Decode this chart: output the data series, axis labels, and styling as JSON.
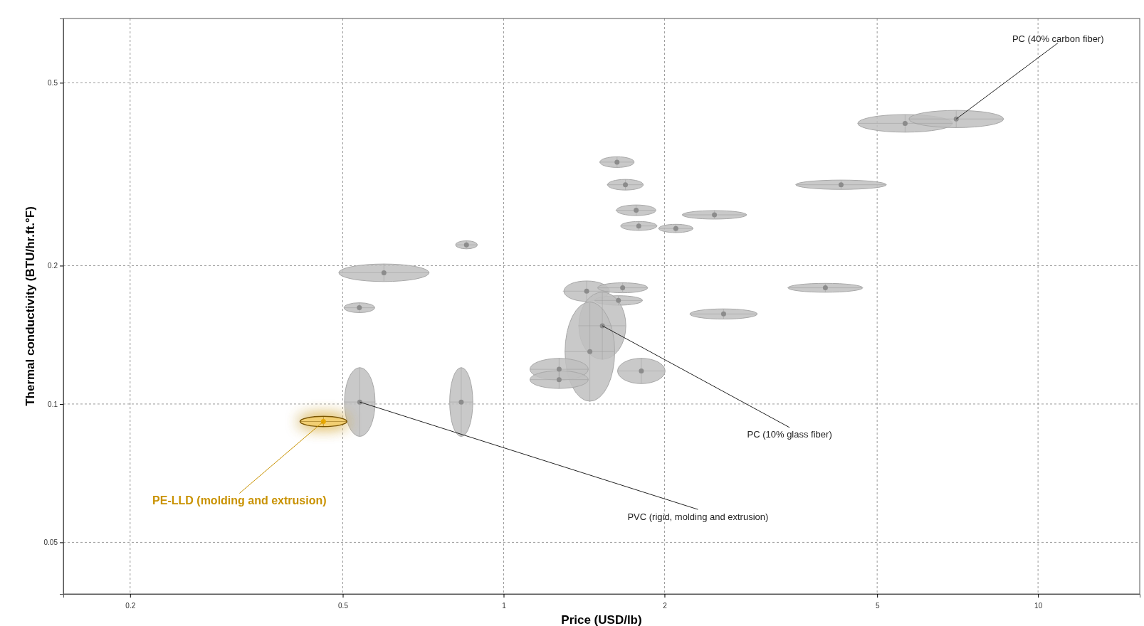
{
  "chart_data": {
    "type": "scatter",
    "xlabel": "Price (USD/lb)",
    "ylabel": "Thermal conductivity (BTU/hr.ft.°F)",
    "log": "xy",
    "grid": true,
    "xlim": [
      0.15,
      15.5
    ],
    "xticks": [
      0.2,
      0.5,
      1,
      2,
      5,
      10
    ],
    "ylim": [
      0.0386,
      0.69
    ],
    "yticks": [
      0.05,
      0.1,
      0.2,
      0.5
    ],
    "series": [
      {
        "color": "#8c8c8c",
        "x": [
          5.64,
          7.03,
          4.28,
          1.63,
          1.69,
          1.77,
          2.48,
          1.79,
          2.1,
          0.852,
          0.597,
          0.537,
          1.43,
          1.67,
          1.64,
          4.0,
          2.58,
          1.53,
          1.45,
          1.27,
          1.27,
          1.81,
          0.538,
          0.833
        ],
        "values": [
          0.408,
          0.417,
          0.3,
          0.336,
          0.3,
          0.264,
          0.258,
          0.244,
          0.241,
          0.222,
          0.193,
          0.162,
          0.176,
          0.179,
          0.168,
          0.179,
          0.157,
          0.148,
          0.13,
          0.119,
          0.113,
          0.118,
          0.101,
          0.101
        ],
        "xerrors": [
          [
            4.6,
            6.92
          ],
          [
            5.74,
            8.63
          ],
          [
            3.52,
            5.2
          ],
          [
            1.51,
            1.75
          ],
          [
            1.56,
            1.82
          ],
          [
            1.62,
            1.92
          ],
          [
            2.16,
            2.85
          ],
          [
            1.66,
            1.94
          ],
          [
            1.95,
            2.26
          ],
          [
            0.813,
            0.893
          ],
          [
            0.492,
            0.726
          ],
          [
            0.503,
            0.574
          ],
          [
            1.29,
            1.57
          ],
          [
            1.5,
            1.86
          ],
          [
            1.48,
            1.82
          ],
          [
            3.4,
            4.69
          ],
          [
            2.23,
            2.98
          ],
          [
            1.38,
            1.69
          ],
          [
            1.3,
            1.61
          ],
          [
            1.12,
            1.44
          ],
          [
            1.12,
            1.44
          ],
          [
            1.63,
            2.0
          ],
          [
            0.504,
            0.575
          ],
          [
            0.793,
            0.876
          ]
        ],
        "errors": [
          [
            0.39,
            0.426
          ],
          [
            0.399,
            0.435
          ],
          [
            0.293,
            0.307
          ],
          [
            0.327,
            0.345
          ],
          [
            0.292,
            0.308
          ],
          [
            0.257,
            0.271
          ],
          [
            0.253,
            0.264
          ],
          [
            0.239,
            0.25
          ],
          [
            0.236,
            0.246
          ],
          [
            0.218,
            0.227
          ],
          [
            0.185,
            0.202
          ],
          [
            0.158,
            0.166
          ],
          [
            0.167,
            0.185
          ],
          [
            0.175,
            0.184
          ],
          [
            0.164,
            0.172
          ],
          [
            0.175,
            0.183
          ],
          [
            0.153,
            0.161
          ],
          [
            0.125,
            0.175
          ],
          [
            0.101,
            0.166
          ],
          [
            0.113,
            0.126
          ],
          [
            0.108,
            0.118
          ],
          [
            0.111,
            0.126
          ],
          [
            0.085,
            0.12
          ],
          [
            0.085,
            0.12
          ]
        ]
      },
      {
        "color": "#e8a800",
        "x": [
          0.46
        ],
        "values": [
          0.0916
        ],
        "xerrors": [
          [
            0.416,
            0.509
          ]
        ],
        "errors": [
          [
            0.0893,
            0.094
          ]
        ]
      }
    ],
    "annotations": [
      {
        "text": "PC (40% carbon fiber)",
        "x": 7.03,
        "y": 0.417
      },
      {
        "text": "PC (10% glass fiber)",
        "x": 1.53,
        "y": 0.148
      },
      {
        "text": "PVC (rigid, molding and extrusion)",
        "x": 0.538,
        "y": 0.101
      },
      {
        "text": "PE-LLD (molding and extrusion)",
        "x": 0.46,
        "y": 0.0916
      }
    ]
  }
}
